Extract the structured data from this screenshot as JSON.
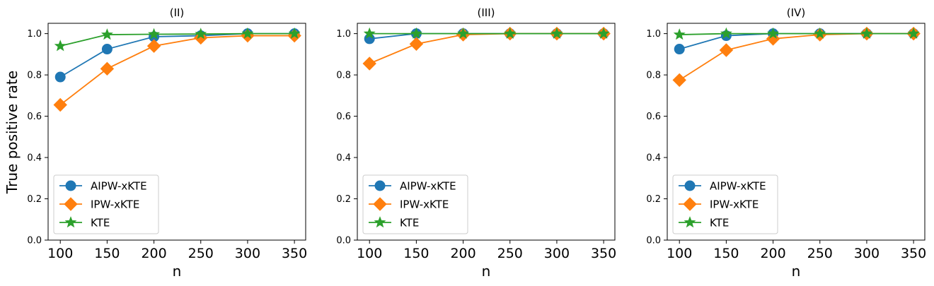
{
  "figure": {
    "ylabel": "True positive rate"
  },
  "colors": {
    "AIPW-xKTE": "#1f77b4",
    "IPW-xKTE": "#ff7f0e",
    "KTE": "#2ca02c"
  },
  "chart_data": [
    {
      "type": "line",
      "title": "(II)",
      "xlabel": "n",
      "ylabel": "True positive rate",
      "x": [
        100,
        150,
        200,
        250,
        300,
        350
      ],
      "xticks": [
        100,
        150,
        200,
        250,
        300,
        350
      ],
      "yticks": [
        0.0,
        0.2,
        0.4,
        0.6,
        0.8,
        1.0
      ],
      "ylim": [
        0,
        1.05
      ],
      "xlim": [
        87,
        362
      ],
      "legend_position": "lower-left",
      "series": [
        {
          "name": "AIPW-xKTE",
          "marker": "circle",
          "values": [
            0.79,
            0.925,
            0.985,
            0.99,
            1.0,
            1.0
          ]
        },
        {
          "name": "IPW-xKTE",
          "marker": "diamond",
          "values": [
            0.655,
            0.83,
            0.94,
            0.98,
            0.99,
            0.99
          ]
        },
        {
          "name": "KTE",
          "marker": "star",
          "values": [
            0.94,
            0.995,
            0.997,
            0.998,
            1.0,
            1.0
          ]
        }
      ]
    },
    {
      "type": "line",
      "title": "(III)",
      "xlabel": "n",
      "ylabel": "",
      "x": [
        100,
        150,
        200,
        250,
        300,
        350
      ],
      "xticks": [
        100,
        150,
        200,
        250,
        300,
        350
      ],
      "yticks": [
        0.0,
        0.2,
        0.4,
        0.6,
        0.8,
        1.0
      ],
      "ylim": [
        0,
        1.05
      ],
      "xlim": [
        87,
        362
      ],
      "legend_position": "lower-left",
      "series": [
        {
          "name": "AIPW-xKTE",
          "marker": "circle",
          "values": [
            0.975,
            1.0,
            1.0,
            1.0,
            1.0,
            1.0
          ]
        },
        {
          "name": "IPW-xKTE",
          "marker": "diamond",
          "values": [
            0.855,
            0.95,
            0.995,
            1.0,
            1.0,
            1.0
          ]
        },
        {
          "name": "KTE",
          "marker": "star",
          "values": [
            1.0,
            1.0,
            1.0,
            1.0,
            1.0,
            1.0
          ]
        }
      ]
    },
    {
      "type": "line",
      "title": "(IV)",
      "xlabel": "n",
      "ylabel": "",
      "x": [
        100,
        150,
        200,
        250,
        300,
        350
      ],
      "xticks": [
        100,
        150,
        200,
        250,
        300,
        350
      ],
      "yticks": [
        0.0,
        0.2,
        0.4,
        0.6,
        0.8,
        1.0
      ],
      "ylim": [
        0,
        1.05
      ],
      "xlim": [
        87,
        362
      ],
      "legend_position": "lower-left",
      "series": [
        {
          "name": "AIPW-xKTE",
          "marker": "circle",
          "values": [
            0.925,
            0.99,
            1.0,
            1.0,
            1.0,
            1.0
          ]
        },
        {
          "name": "IPW-xKTE",
          "marker": "diamond",
          "values": [
            0.775,
            0.92,
            0.975,
            0.995,
            1.0,
            1.0
          ]
        },
        {
          "name": "KTE",
          "marker": "star",
          "values": [
            0.995,
            1.0,
            1.0,
            1.0,
            1.0,
            1.0
          ]
        }
      ]
    }
  ]
}
